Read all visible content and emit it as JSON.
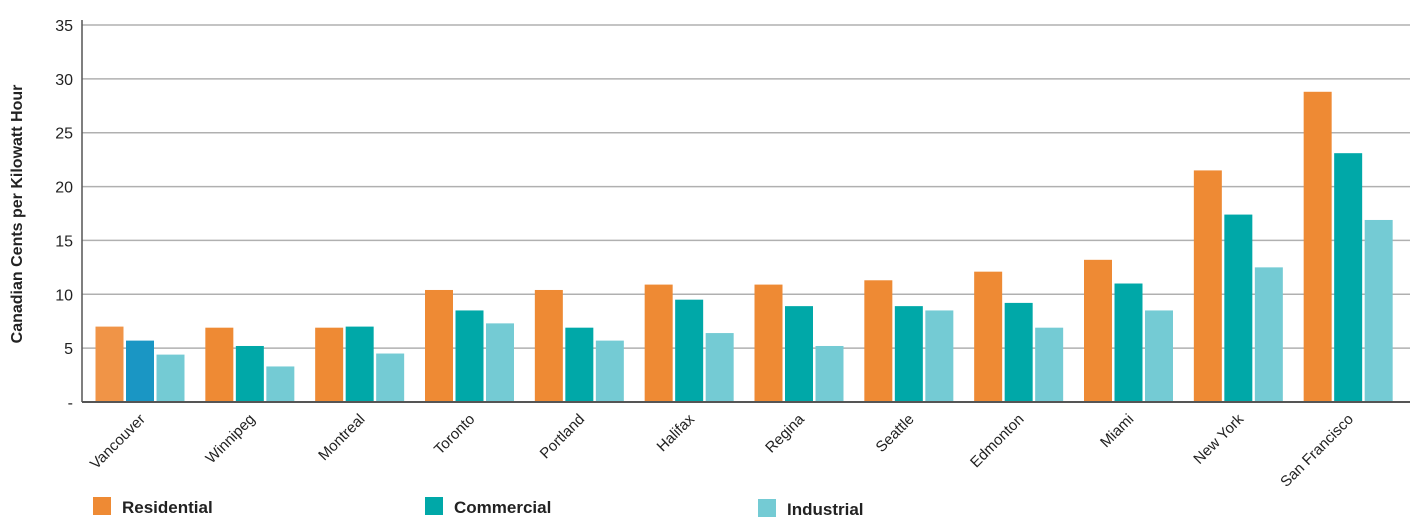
{
  "chart_data": {
    "type": "bar",
    "title": "",
    "xlabel": "",
    "ylabel": "Canadian Cents per Kilowatt Hour",
    "ylim": [
      0,
      35
    ],
    "yticks": [
      0,
      5,
      10,
      15,
      20,
      25,
      30,
      35
    ],
    "ytick_labels": [
      "-",
      "5",
      "10",
      "15",
      "20",
      "25",
      "30",
      "35"
    ],
    "grid": true,
    "legend_position": "bottom",
    "categories": [
      "Vancouver",
      "Winnipeg",
      "Montreal",
      "Toronto",
      "Portland",
      "Halifax",
      "Regina",
      "Seattle",
      "Edmonton",
      "Miami",
      "New York",
      "San Francisco"
    ],
    "series": [
      {
        "name": "Residential",
        "color": "#ee8a34",
        "values": [
          7.0,
          6.9,
          6.9,
          10.4,
          10.4,
          10.9,
          10.9,
          11.3,
          12.1,
          13.2,
          21.5,
          28.8
        ]
      },
      {
        "name": "Commercial",
        "color": "#00a8a8",
        "values": [
          5.7,
          5.2,
          7.0,
          8.5,
          6.9,
          9.5,
          8.9,
          8.9,
          9.2,
          11.0,
          17.4,
          23.1
        ]
      },
      {
        "name": "Industrial",
        "color": "#74cbd4",
        "values": [
          4.4,
          3.3,
          4.5,
          7.3,
          5.7,
          6.4,
          5.2,
          8.5,
          6.9,
          8.5,
          12.5,
          16.9
        ]
      }
    ],
    "special_colors": {
      "vancouver_commercial": "#1a96c4",
      "vancouver_residential": "#f09447"
    },
    "axis_color": "#555555",
    "grid_color": "#b0b0b0"
  }
}
